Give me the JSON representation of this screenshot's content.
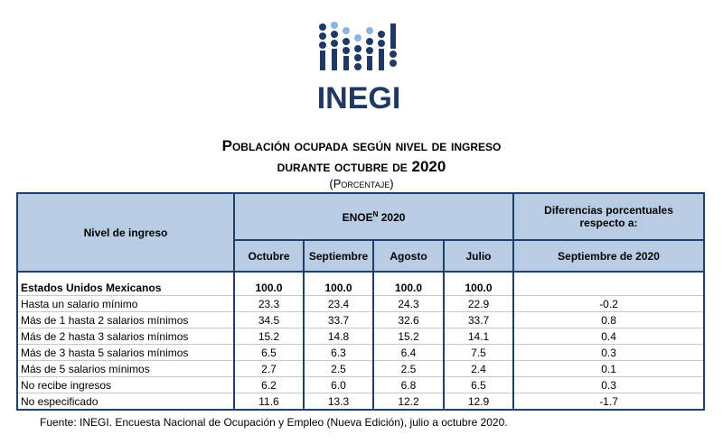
{
  "logo": {
    "text": "INEGI"
  },
  "header": {
    "title": "Población ocupada según nivel de ingreso",
    "subtitle": "durante octubre de 2020",
    "unit": "(Porcentaje)"
  },
  "table": {
    "columns": {
      "level": "Nivel de ingreso",
      "enoe": {
        "label": "ENOE",
        "superscript": "N",
        "year": "2020"
      },
      "diff": "Diferencias porcentuales respecto a:"
    },
    "subcolumns": [
      "Octubre",
      "Septiembre",
      "Agosto",
      "Julio",
      "Septiembre de 2020"
    ],
    "rows": [
      [
        "Estados Unidos Mexicanos",
        "100.0",
        "100.0",
        "100.0",
        "100.0"
      ],
      [
        "Hasta un salario mínimo",
        "23.3",
        "23.4",
        "24.3",
        "22.9",
        "-0.2"
      ],
      [
        "Más de 1 hasta 2 salarios mínimos",
        "34.5",
        "33.7",
        "32.6",
        "33.7",
        "0.8"
      ],
      [
        "Más de 2 hasta 3 salarios mínimos",
        "15.2",
        "14.8",
        "15.2",
        "14.1",
        "0.4"
      ],
      [
        "Más de 3 hasta 5 salarios mínimos",
        "6.5",
        "6.3",
        "6.4",
        "7.5",
        "0.3"
      ],
      [
        "Más de 5 salarios mínimos",
        "2.7",
        "2.5",
        "2.5",
        "2.4",
        "0.1"
      ],
      [
        "No recibe ingresos",
        "6.2",
        "6.0",
        "6.8",
        "6.5",
        "0.3"
      ],
      [
        "No especificado",
        "11.6",
        "13.3",
        "12.2",
        "12.9",
        "-1.7"
      ]
    ]
  },
  "footer": {
    "source": "Fuente:  INEGI. Encuesta Nacional de Ocupación y Empleo (Nueva Edición), julio a octubre 2020."
  }
}
